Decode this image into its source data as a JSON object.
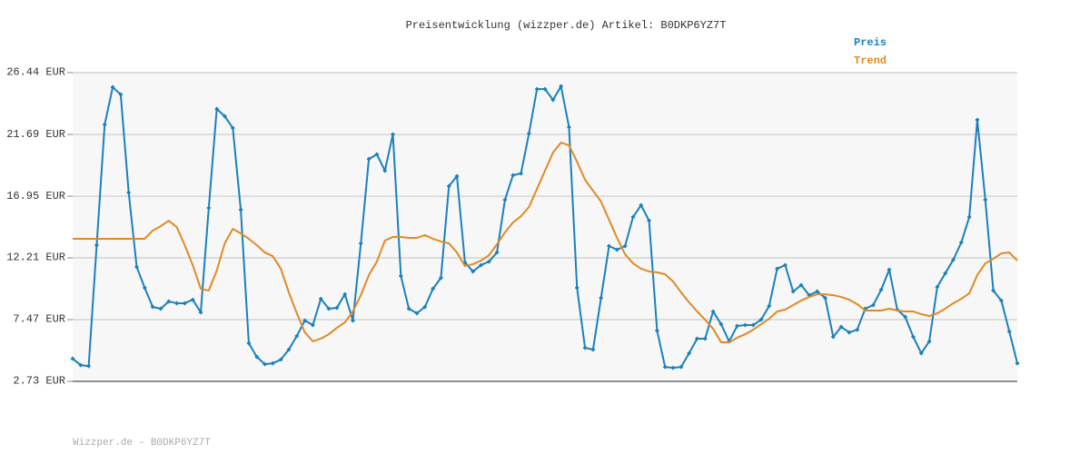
{
  "chart_data": {
    "type": "line",
    "title": "Preisentwicklung (wizzper.de) Artikel: B0DKP6YZ7T",
    "footer": "Wizzper.de - B0DKP6YZ7T",
    "ylim": [
      2.73,
      26.44
    ],
    "yticks": [
      {
        "value": 2.73,
        "label": "2.73 EUR"
      },
      {
        "value": 7.47,
        "label": "7.47 EUR"
      },
      {
        "value": 12.21,
        "label": "12.21 EUR"
      },
      {
        "value": 16.95,
        "label": "16.95 EUR"
      },
      {
        "value": 21.69,
        "label": "21.69 EUR"
      },
      {
        "value": 26.44,
        "label": "26.44 EUR"
      }
    ],
    "grid": true,
    "legend": "top-right",
    "series": [
      {
        "name": "Preis",
        "color": "#1b80bd",
        "markers": true,
        "values": [
          4.47,
          3.98,
          3.91,
          13.19,
          22.46,
          25.32,
          24.77,
          17.23,
          11.52,
          9.91,
          8.45,
          8.31,
          8.87,
          8.73,
          8.73,
          9.0,
          8.03,
          16.05,
          23.65,
          23.09,
          22.19,
          15.91,
          5.66,
          4.61,
          4.05,
          4.12,
          4.4,
          5.17,
          6.22,
          7.4,
          7.05,
          9.07,
          8.31,
          8.38,
          9.42,
          7.4,
          13.33,
          19.81,
          20.16,
          18.91,
          21.7,
          10.82,
          8.31,
          7.96,
          8.45,
          9.84,
          10.68,
          17.72,
          18.49,
          11.86,
          11.17,
          11.66,
          11.93,
          12.63,
          16.68,
          18.56,
          18.7,
          21.77,
          25.18,
          25.18,
          24.35,
          25.39,
          22.26,
          9.91,
          5.31,
          5.17,
          9.14,
          13.12,
          12.84,
          13.12,
          15.35,
          16.26,
          15.07,
          6.63,
          3.84,
          3.77,
          3.84,
          4.89,
          6.01,
          6.01,
          8.1,
          7.12,
          5.8,
          6.98,
          7.05,
          7.05,
          7.47,
          8.52,
          11.38,
          11.66,
          9.63,
          10.12,
          9.35,
          9.63,
          9.14,
          6.15,
          6.91,
          6.49,
          6.7,
          8.31,
          8.59,
          9.77,
          11.31,
          8.24,
          7.68,
          6.15,
          4.89,
          5.8,
          9.98,
          11.03,
          12.07,
          13.4,
          15.35,
          22.81,
          16.68,
          9.7,
          8.94,
          6.56,
          4.12
        ]
      },
      {
        "name": "Trend",
        "color": "#e08a25",
        "markers": false,
        "values": [
          13.68,
          13.68,
          13.68,
          13.68,
          13.68,
          13.68,
          13.68,
          13.68,
          13.68,
          13.68,
          14.31,
          14.65,
          15.07,
          14.58,
          13.19,
          11.66,
          9.84,
          9.7,
          11.24,
          13.33,
          14.44,
          14.1,
          13.68,
          13.19,
          12.63,
          12.35,
          11.38,
          9.56,
          7.96,
          6.49,
          5.8,
          6.01,
          6.35,
          6.84,
          7.26,
          8.1,
          9.35,
          10.89,
          11.93,
          13.54,
          13.82,
          13.82,
          13.75,
          13.75,
          13.96,
          13.68,
          13.47,
          13.33,
          12.63,
          11.59,
          11.73,
          12.0,
          12.42,
          13.26,
          14.17,
          14.93,
          15.42,
          16.12,
          17.51,
          18.91,
          20.3,
          21.07,
          20.86,
          19.61,
          18.21,
          17.37,
          16.54,
          15.14,
          13.75,
          12.49,
          11.79,
          11.38,
          11.17,
          11.1,
          10.96,
          10.4,
          9.56,
          8.8,
          8.1,
          7.47,
          6.77,
          5.73,
          5.73,
          6.08,
          6.35,
          6.7,
          7.12,
          7.54,
          8.1,
          8.24,
          8.59,
          8.94,
          9.21,
          9.42,
          9.42,
          9.35,
          9.21,
          9.0,
          8.66,
          8.17,
          8.17,
          8.17,
          8.31,
          8.17,
          8.1,
          8.1,
          7.89,
          7.75,
          7.96,
          8.31,
          8.73,
          9.07,
          9.49,
          10.89,
          11.79,
          12.14,
          12.56,
          12.63,
          12.0
        ]
      }
    ]
  }
}
